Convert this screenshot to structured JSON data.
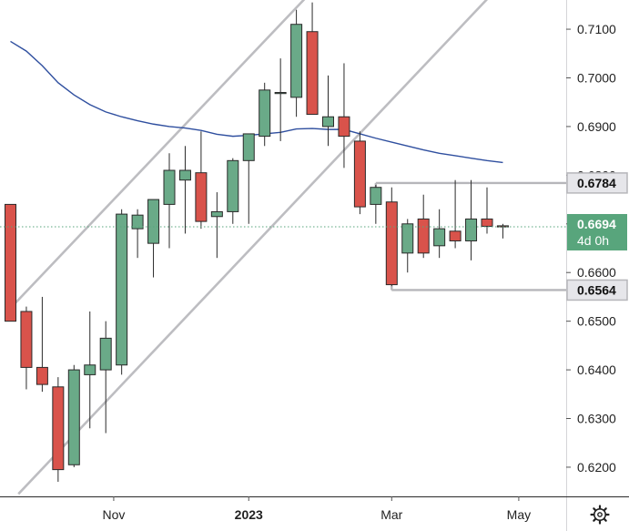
{
  "chart_data": {
    "type": "candlestick",
    "title": "",
    "ylim": [
      0.614,
      0.716
    ],
    "y_ticks": [
      0.62,
      0.63,
      0.64,
      0.65,
      0.66,
      0.67,
      0.68,
      0.69,
      0.7,
      0.71
    ],
    "y_tick_labels": [
      "0.6200",
      "0.6300",
      "0.6400",
      "0.6500",
      "0.6600",
      "0.6700",
      "0.6800",
      "0.6900",
      "0.7000",
      "0.7100"
    ],
    "x_ticks": [
      {
        "label": "Nov",
        "bar": 6.5,
        "bold": false
      },
      {
        "label": "2023",
        "bar": 15,
        "bold": true
      },
      {
        "label": "Mar",
        "bar": 24,
        "bold": false
      },
      {
        "label": "May",
        "bar": 32,
        "bold": false
      }
    ],
    "bar_count_visible": 35,
    "candles": [
      {
        "o": 0.674,
        "h": 0.674,
        "l": 0.65,
        "c": 0.65
      },
      {
        "o": 0.652,
        "h": 0.653,
        "l": 0.636,
        "c": 0.6405
      },
      {
        "o": 0.6405,
        "h": 0.655,
        "l": 0.6355,
        "c": 0.637
      },
      {
        "o": 0.6365,
        "h": 0.6385,
        "l": 0.617,
        "c": 0.6195
      },
      {
        "o": 0.6205,
        "h": 0.641,
        "l": 0.62,
        "c": 0.64
      },
      {
        "o": 0.639,
        "h": 0.652,
        "l": 0.628,
        "c": 0.641
      },
      {
        "o": 0.64,
        "h": 0.65,
        "l": 0.627,
        "c": 0.6465
      },
      {
        "o": 0.641,
        "h": 0.673,
        "l": 0.639,
        "c": 0.672
      },
      {
        "o": 0.669,
        "h": 0.673,
        "l": 0.663,
        "c": 0.6718
      },
      {
        "o": 0.666,
        "h": 0.675,
        "l": 0.659,
        "c": 0.675
      },
      {
        "o": 0.674,
        "h": 0.6845,
        "l": 0.665,
        "c": 0.681
      },
      {
        "o": 0.679,
        "h": 0.686,
        "l": 0.668,
        "c": 0.681
      },
      {
        "o": 0.6805,
        "h": 0.689,
        "l": 0.669,
        "c": 0.6705
      },
      {
        "o": 0.6715,
        "h": 0.6765,
        "l": 0.663,
        "c": 0.6725
      },
      {
        "o": 0.6725,
        "h": 0.6835,
        "l": 0.67,
        "c": 0.683
      },
      {
        "o": 0.683,
        "h": 0.6885,
        "l": 0.67,
        "c": 0.6885
      },
      {
        "o": 0.688,
        "h": 0.699,
        "l": 0.686,
        "c": 0.6975
      },
      {
        "o": 0.697,
        "h": 0.704,
        "l": 0.687,
        "c": 0.697
      },
      {
        "o": 0.696,
        "h": 0.714,
        "l": 0.692,
        "c": 0.711
      },
      {
        "o": 0.7095,
        "h": 0.7155,
        "l": 0.6925,
        "c": 0.6925
      },
      {
        "o": 0.69,
        "h": 0.7005,
        "l": 0.686,
        "c": 0.692
      },
      {
        "o": 0.692,
        "h": 0.703,
        "l": 0.6815,
        "c": 0.688
      },
      {
        "o": 0.687,
        "h": 0.689,
        "l": 0.672,
        "c": 0.6735
      },
      {
        "o": 0.674,
        "h": 0.678,
        "l": 0.67,
        "c": 0.6775
      },
      {
        "o": 0.6745,
        "h": 0.6775,
        "l": 0.6572,
        "c": 0.6575
      },
      {
        "o": 0.664,
        "h": 0.671,
        "l": 0.66,
        "c": 0.67
      },
      {
        "o": 0.671,
        "h": 0.676,
        "l": 0.663,
        "c": 0.664
      },
      {
        "o": 0.6655,
        "h": 0.673,
        "l": 0.663,
        "c": 0.669
      },
      {
        "o": 0.6685,
        "h": 0.679,
        "l": 0.665,
        "c": 0.6665
      },
      {
        "o": 0.6665,
        "h": 0.679,
        "l": 0.6625,
        "c": 0.671
      },
      {
        "o": 0.671,
        "h": 0.6775,
        "l": 0.668,
        "c": 0.6695
      },
      {
        "o": 0.6696,
        "h": 0.67,
        "l": 0.667,
        "c": 0.6694
      }
    ],
    "moving_average": {
      "color": "#2f4f9f",
      "points": [
        [
          0,
          0.7075
        ],
        [
          1,
          0.7055
        ],
        [
          2,
          0.7025
        ],
        [
          3,
          0.699
        ],
        [
          4,
          0.6965
        ],
        [
          5,
          0.6945
        ],
        [
          6,
          0.693
        ],
        [
          7,
          0.692
        ],
        [
          8,
          0.6912
        ],
        [
          9,
          0.6905
        ],
        [
          10,
          0.69
        ],
        [
          11,
          0.6897
        ],
        [
          12,
          0.6892
        ],
        [
          13,
          0.6884
        ],
        [
          14,
          0.688
        ],
        [
          15,
          0.6882
        ],
        [
          16,
          0.6885
        ],
        [
          17,
          0.6888
        ],
        [
          18,
          0.6895
        ],
        [
          19,
          0.6896
        ],
        [
          20,
          0.6894
        ],
        [
          21,
          0.6894
        ],
        [
          22,
          0.6885
        ],
        [
          23,
          0.6876
        ],
        [
          24,
          0.6868
        ],
        [
          25,
          0.686
        ],
        [
          26,
          0.6852
        ],
        [
          27,
          0.6845
        ],
        [
          28,
          0.684
        ],
        [
          29,
          0.6835
        ],
        [
          30,
          0.683
        ],
        [
          31,
          0.6826
        ]
      ]
    },
    "channel_lines": [
      {
        "from": [
          -0.2,
          0.652
        ],
        "to": [
          18.6,
          0.7165
        ]
      },
      {
        "from": [
          0.5,
          0.6145
        ],
        "to": [
          30.1,
          0.7165
        ]
      }
    ],
    "horizontal_levels": [
      {
        "value": 0.6784,
        "start_bar": 23,
        "label": "0.6784"
      },
      {
        "value": 0.6564,
        "start_bar": 24,
        "label": "0.6564"
      }
    ],
    "current_price": {
      "value": 0.6694,
      "label": "0.6694",
      "countdown": "4d 0h"
    },
    "colors": {
      "up": "#6aaa88",
      "down": "#d9534b",
      "outline": "#2a2a2a",
      "channel": "#bdbdc1",
      "level_line": "#b6b6ba",
      "current_price": "#58a57c",
      "tag_bg": "#e6e6ea",
      "tag_border": "#b6b6ba"
    }
  },
  "toolbar": {
    "settings_icon": "gear-icon"
  }
}
